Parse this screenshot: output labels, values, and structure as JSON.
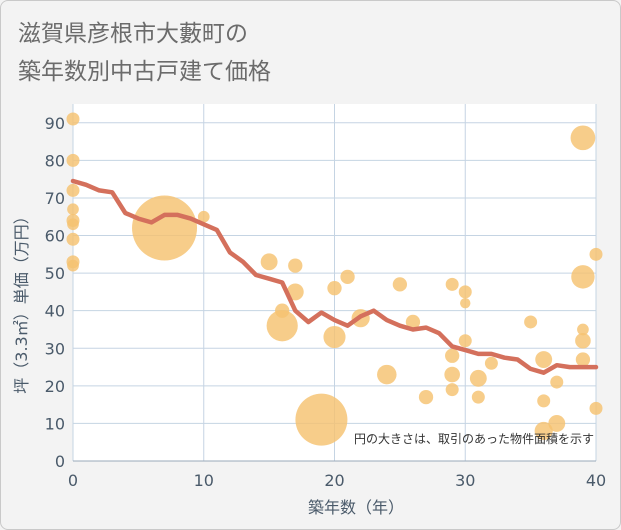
{
  "title": {
    "line1": "滋賀県彦根市大藪町の",
    "line2": "築年数別中古戸建て価格"
  },
  "chart_data": {
    "type": "scatter",
    "title": "滋賀県彦根市大藪町の築年数別中古戸建て価格",
    "xlabel": "築年数（年）",
    "ylabel": "坪（3.3㎡）単価（万円）",
    "xlim": [
      0,
      40
    ],
    "ylim": [
      0,
      95
    ],
    "xticks": [
      0,
      10,
      20,
      30,
      40
    ],
    "yticks": [
      0,
      10,
      20,
      30,
      40,
      50,
      60,
      70,
      80,
      90
    ],
    "note": "円の大きさは、取引のあった物件面積を示す",
    "colors": {
      "bubble": "#f5c270",
      "line": "#d4705c",
      "grid": "#c5d4e3"
    },
    "points": [
      {
        "x": 0,
        "y": 91,
        "s": 1.0
      },
      {
        "x": 0,
        "y": 80,
        "s": 1.0
      },
      {
        "x": 0,
        "y": 72,
        "s": 1.0
      },
      {
        "x": 0,
        "y": 67,
        "s": 0.9
      },
      {
        "x": 0,
        "y": 64,
        "s": 1.0
      },
      {
        "x": 0,
        "y": 63,
        "s": 0.9
      },
      {
        "x": 0,
        "y": 59,
        "s": 1.0
      },
      {
        "x": 0,
        "y": 53,
        "s": 1.0
      },
      {
        "x": 0,
        "y": 52,
        "s": 0.9
      },
      {
        "x": 7,
        "y": 62,
        "s": 5.0
      },
      {
        "x": 10,
        "y": 65,
        "s": 0.9
      },
      {
        "x": 15,
        "y": 53,
        "s": 1.3
      },
      {
        "x": 16,
        "y": 40,
        "s": 1.1
      },
      {
        "x": 16,
        "y": 36,
        "s": 2.4
      },
      {
        "x": 17,
        "y": 52,
        "s": 1.1
      },
      {
        "x": 17,
        "y": 45,
        "s": 1.3
      },
      {
        "x": 19,
        "y": 11,
        "s": 4.0
      },
      {
        "x": 20,
        "y": 46,
        "s": 1.1
      },
      {
        "x": 20,
        "y": 33,
        "s": 1.7
      },
      {
        "x": 21,
        "y": 49,
        "s": 1.1
      },
      {
        "x": 22,
        "y": 38,
        "s": 1.4
      },
      {
        "x": 24,
        "y": 23,
        "s": 1.5
      },
      {
        "x": 25,
        "y": 47,
        "s": 1.1
      },
      {
        "x": 26,
        "y": 37,
        "s": 1.1
      },
      {
        "x": 27,
        "y": 17,
        "s": 1.1
      },
      {
        "x": 29,
        "y": 47,
        "s": 1.0
      },
      {
        "x": 29,
        "y": 28,
        "s": 1.1
      },
      {
        "x": 29,
        "y": 23,
        "s": 1.2
      },
      {
        "x": 29,
        "y": 19,
        "s": 1.0
      },
      {
        "x": 30,
        "y": 45,
        "s": 1.0
      },
      {
        "x": 30,
        "y": 42,
        "s": 0.8
      },
      {
        "x": 30,
        "y": 32,
        "s": 1.0
      },
      {
        "x": 31,
        "y": 22,
        "s": 1.3
      },
      {
        "x": 31,
        "y": 17,
        "s": 1.0
      },
      {
        "x": 32,
        "y": 26,
        "s": 1.0
      },
      {
        "x": 35,
        "y": 37,
        "s": 1.0
      },
      {
        "x": 36,
        "y": 27,
        "s": 1.3
      },
      {
        "x": 36,
        "y": 16,
        "s": 1.0
      },
      {
        "x": 36,
        "y": 8,
        "s": 1.4
      },
      {
        "x": 37,
        "y": 21,
        "s": 1.0
      },
      {
        "x": 37,
        "y": 10,
        "s": 1.3
      },
      {
        "x": 39,
        "y": 86,
        "s": 1.9
      },
      {
        "x": 39,
        "y": 49,
        "s": 1.8
      },
      {
        "x": 39,
        "y": 35,
        "s": 0.9
      },
      {
        "x": 39,
        "y": 32,
        "s": 1.2
      },
      {
        "x": 39,
        "y": 27,
        "s": 1.1
      },
      {
        "x": 40,
        "y": 55,
        "s": 1.0
      },
      {
        "x": 40,
        "y": 14,
        "s": 1.0
      }
    ],
    "trend": {
      "x": [
        0,
        1,
        2,
        3,
        4,
        5,
        6,
        7,
        8,
        9,
        10,
        11,
        12,
        13,
        14,
        15,
        16,
        17,
        18,
        19,
        20,
        21,
        22,
        23,
        24,
        25,
        26,
        27,
        28,
        29,
        30,
        31,
        32,
        33,
        34,
        35,
        36,
        37,
        38,
        39,
        40
      ],
      "y": [
        74.5,
        73.5,
        72,
        71.5,
        66,
        64.5,
        63.5,
        65.5,
        65.5,
        64.5,
        63,
        61.5,
        55.5,
        53,
        49.5,
        48.5,
        47.5,
        40,
        37,
        39.5,
        37.5,
        36,
        38.5,
        40,
        37.5,
        36,
        35,
        35.5,
        34,
        30.5,
        29.5,
        28.5,
        28.5,
        27.5,
        27,
        24.5,
        23.5,
        25.5,
        25,
        25,
        25
      ]
    }
  }
}
